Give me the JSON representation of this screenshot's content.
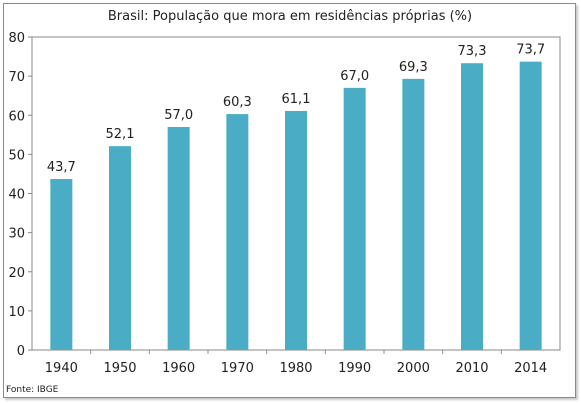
{
  "chart_data": {
    "type": "bar",
    "title": "Brasil: População que mora em residências próprias (%)",
    "categories": [
      "1940",
      "1950",
      "1960",
      "1970",
      "1980",
      "1990",
      "2000",
      "2010",
      "2014"
    ],
    "values": [
      43.7,
      52.1,
      57.0,
      60.3,
      61.1,
      67.0,
      69.3,
      73.3,
      73.7
    ],
    "data_labels": [
      "43,7",
      "52,1",
      "57,0",
      "60,3",
      "61,1",
      "67,0",
      "69,3",
      "73,3",
      "73,7"
    ],
    "y_ticks": [
      "0",
      "10",
      "20",
      "30",
      "40",
      "50",
      "60",
      "70",
      "80"
    ],
    "ylim": [
      0,
      80
    ],
    "grid": false,
    "legend": "none",
    "bar_color": "#4bacc6",
    "source": "Fonte: IBGE"
  }
}
